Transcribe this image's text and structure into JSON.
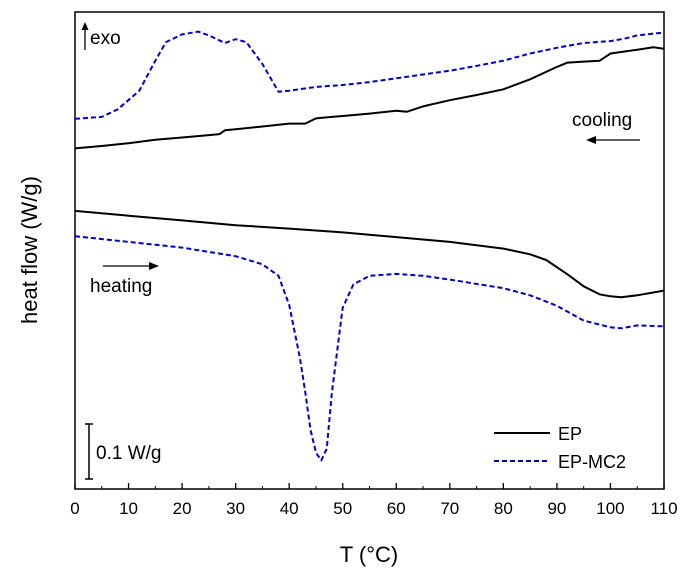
{
  "chart_data": {
    "type": "line",
    "title": "",
    "xlabel": "T (°C)",
    "ylabel": "heat flow (W/g)",
    "xlim": [
      0,
      110
    ],
    "ylim": [
      0,
      100
    ],
    "xticks": [
      0,
      10,
      20,
      30,
      40,
      50,
      60,
      70,
      80,
      90,
      100,
      110
    ],
    "y_tick_labels_shown": false,
    "grid": false,
    "legend_position": "bottom-right",
    "annotations": {
      "exo": "exo",
      "cooling": "cooling",
      "heating": "heating",
      "scale_bar": "0.1 W/g"
    },
    "series": [
      {
        "name": "EP",
        "style": "solid",
        "color": "#000000",
        "segment": "cooling",
        "x": [
          0,
          5,
          10,
          15,
          20,
          25,
          27,
          28,
          30,
          35,
          40,
          43,
          45,
          48,
          50,
          55,
          60,
          62,
          65,
          70,
          75,
          80,
          85,
          90,
          92,
          95,
          98,
          100,
          105,
          108,
          110
        ],
        "y": [
          71.4,
          71.9,
          72.5,
          73.2,
          73.7,
          74.2,
          74.4,
          75.2,
          75.4,
          76.0,
          76.6,
          76.6,
          77.7,
          78.0,
          78.2,
          78.7,
          79.3,
          79.1,
          80.2,
          81.5,
          82.6,
          83.8,
          85.9,
          88.5,
          89.4,
          89.6,
          89.8,
          91.3,
          92.1,
          92.6,
          92.3
        ]
      },
      {
        "name": "EP-MC2",
        "style": "dashed",
        "color": "#0000cc",
        "segment": "cooling",
        "x": [
          0,
          5,
          8,
          12,
          15,
          17,
          20,
          23,
          25,
          28,
          30,
          32,
          35,
          38,
          40,
          45,
          50,
          55,
          60,
          65,
          70,
          75,
          80,
          85,
          90,
          95,
          100,
          103,
          105,
          110
        ],
        "y": [
          77.6,
          78.0,
          79.6,
          83.5,
          89.8,
          93.7,
          95.3,
          95.9,
          95.1,
          93.5,
          94.3,
          93.7,
          89.1,
          83.3,
          83.5,
          84.3,
          84.7,
          85.3,
          86.1,
          86.9,
          87.7,
          88.7,
          89.8,
          91.3,
          92.5,
          93.5,
          93.9,
          94.5,
          95.1,
          95.7
        ]
      },
      {
        "name": "EP",
        "style": "solid",
        "color": "#000000",
        "segment": "heating",
        "x": [
          0,
          10,
          20,
          30,
          40,
          50,
          60,
          70,
          80,
          85,
          88,
          90,
          92,
          95,
          98,
          100,
          102,
          105,
          110
        ],
        "y": [
          58.3,
          57.3,
          56.3,
          55.3,
          54.6,
          53.8,
          52.8,
          51.8,
          50.4,
          49.2,
          48.0,
          46.5,
          45.0,
          42.5,
          40.8,
          40.4,
          40.2,
          40.6,
          41.6
        ]
      },
      {
        "name": "EP-MC2",
        "style": "dashed",
        "color": "#0000cc",
        "segment": "heating",
        "x": [
          0,
          10,
          20,
          30,
          35,
          38,
          40,
          42,
          43,
          44,
          45,
          46,
          47,
          48,
          50,
          52,
          55,
          60,
          65,
          70,
          80,
          85,
          90,
          95,
          100,
          102,
          105,
          110
        ],
        "y": [
          53.0,
          51.8,
          50.6,
          48.8,
          47.1,
          44.7,
          38.6,
          27.5,
          20.4,
          12.3,
          7.6,
          6.0,
          8.4,
          20.4,
          38.0,
          42.9,
          44.7,
          45.1,
          44.7,
          43.9,
          42.1,
          40.6,
          38.4,
          35.3,
          33.9,
          33.7,
          34.3,
          34.1
        ]
      }
    ]
  }
}
